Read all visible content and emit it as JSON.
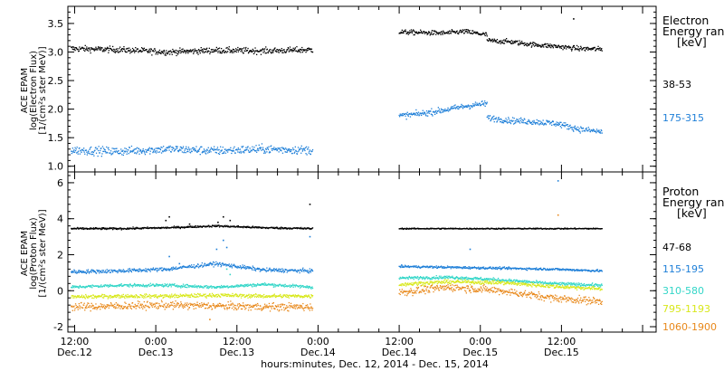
{
  "chart_data": [
    {
      "type": "scatter",
      "panel": "top",
      "ylabel_lines": [
        "ACE EPAM",
        "log(Electron Flux)",
        "[1/(cm²s ster MeV)]"
      ],
      "ylim": [
        0.9,
        3.8
      ],
      "yticks": [
        1.0,
        1.5,
        2.0,
        2.5,
        3.0,
        3.5
      ],
      "ytick_labels": [
        "1.0",
        "1.5",
        "2.0",
        "2.5",
        "3.0",
        "3.5"
      ],
      "legend_title_lines": [
        "Electron",
        "Energy ranges",
        "[keV]"
      ],
      "legend_placement": "right",
      "data_gap_hours": [
        35.2,
        48.0
      ],
      "series": [
        {
          "name": "38-53",
          "color": "#000000",
          "segments": [
            {
              "start": -0.5,
              "end": 35.2,
              "levels": [
                3.06,
                3.04,
                3.0,
                3.03,
                3.02,
                3.04
              ],
              "noise": 0.05
            },
            {
              "start": 48.0,
              "end": 61.0,
              "levels": [
                3.35,
                3.34,
                3.33,
                3.36,
                3.3
              ],
              "noise": 0.04
            },
            {
              "start": 61.0,
              "end": 78.0,
              "levels": [
                3.2,
                3.18,
                3.13,
                3.1,
                3.06,
                3.05
              ],
              "noise": 0.04
            }
          ],
          "outliers": [
            [
              73.8,
              3.58
            ]
          ]
        },
        {
          "name": "175-315",
          "color": "#1e7fd8",
          "segments": [
            {
              "start": -0.5,
              "end": 35.2,
              "levels": [
                1.28,
                1.26,
                1.3,
                1.27,
                1.3,
                1.28
              ],
              "noise": 0.07
            },
            {
              "start": 48.0,
              "end": 61.0,
              "levels": [
                1.88,
                1.92,
                1.98,
                2.05,
                2.1
              ],
              "noise": 0.05
            },
            {
              "start": 61.0,
              "end": 78.0,
              "levels": [
                1.85,
                1.8,
                1.78,
                1.75,
                1.65,
                1.6
              ],
              "noise": 0.05
            }
          ],
          "outliers": []
        }
      ]
    },
    {
      "type": "scatter",
      "panel": "bottom",
      "ylabel_lines": [
        "ACE EPAM",
        "log(Proton Flux)",
        "[1/(cm²s ster MeV)]"
      ],
      "ylim": [
        -2.3,
        6.6
      ],
      "yticks": [
        -2,
        0,
        2,
        4,
        6
      ],
      "ytick_labels": [
        "-2",
        "0",
        "2",
        "4",
        "6"
      ],
      "legend_title_lines": [
        "Proton",
        "Energy ranges",
        "[keV]"
      ],
      "legend_placement": "right",
      "series": [
        {
          "name": "47-68",
          "color": "#000000",
          "segments": [
            {
              "start": -0.5,
              "end": 35.2,
              "levels": [
                3.45,
                3.45,
                3.5,
                3.6,
                3.5,
                3.45
              ],
              "noise": 0.05
            },
            {
              "start": 48.0,
              "end": 78.0,
              "levels": [
                3.45,
                3.45,
                3.45,
                3.45,
                3.45
              ],
              "noise": 0.03
            }
          ],
          "outliers": [
            [
              13.5,
              3.9
            ],
            [
              14.0,
              4.1
            ],
            [
              17.0,
              3.7
            ],
            [
              21.2,
              3.8
            ],
            [
              22.0,
              4.1
            ],
            [
              23.0,
              3.9
            ],
            [
              34.8,
              4.8
            ]
          ]
        },
        {
          "name": "115-195",
          "color": "#1e7fd8",
          "segments": [
            {
              "start": -0.5,
              "end": 35.2,
              "levels": [
                1.05,
                1.1,
                1.2,
                1.5,
                1.15,
                1.1
              ],
              "noise": 0.1
            },
            {
              "start": 48.0,
              "end": 78.0,
              "levels": [
                1.35,
                1.3,
                1.25,
                1.2,
                1.1
              ],
              "noise": 0.06
            }
          ],
          "outliers": [
            [
              14.0,
              1.9
            ],
            [
              15.5,
              1.5
            ],
            [
              21.0,
              2.3
            ],
            [
              22.0,
              2.8
            ],
            [
              22.5,
              2.4
            ],
            [
              34.8,
              3.0
            ],
            [
              58.5,
              2.3
            ],
            [
              71.5,
              6.1
            ]
          ]
        },
        {
          "name": "310-580",
          "color": "#33d6c8",
          "segments": [
            {
              "start": -0.5,
              "end": 35.2,
              "levels": [
                0.2,
                0.3,
                0.3,
                0.2,
                0.35,
                0.2
              ],
              "noise": 0.08
            },
            {
              "start": 48.0,
              "end": 78.0,
              "levels": [
                0.7,
                0.75,
                0.6,
                0.4,
                0.3
              ],
              "noise": 0.08
            }
          ],
          "outliers": [
            [
              22.5,
              1.2
            ],
            [
              23.0,
              0.9
            ]
          ]
        },
        {
          "name": "795-1193",
          "color": "#d8e81a",
          "segments": [
            {
              "start": -0.5,
              "end": 35.2,
              "levels": [
                -0.35,
                -0.3,
                -0.3,
                -0.25,
                -0.3,
                -0.3
              ],
              "noise": 0.1
            },
            {
              "start": 48.0,
              "end": 78.0,
              "levels": [
                0.35,
                0.5,
                0.45,
                0.25,
                0.1
              ],
              "noise": 0.1
            }
          ],
          "outliers": []
        },
        {
          "name": "1060-1900",
          "color": "#e8881a",
          "segments": [
            {
              "start": -0.5,
              "end": 35.2,
              "levels": [
                -0.9,
                -0.85,
                -0.8,
                -0.85,
                -0.9,
                -0.9
              ],
              "noise": 0.2
            },
            {
              "start": 48.0,
              "end": 78.0,
              "levels": [
                -0.1,
                0.2,
                0.0,
                -0.4,
                -0.6
              ],
              "noise": 0.2
            }
          ],
          "outliers": [
            [
              71.5,
              4.2
            ],
            [
              20.0,
              -1.6
            ]
          ]
        }
      ]
    }
  ],
  "x_axis": {
    "range_hours": [
      -1.0,
      86.0
    ],
    "xlabel": "hours:minutes, Dec. 12, 2014 - Dec. 15, 2014",
    "major_ticks": [
      {
        "hour": 0,
        "time": "12:00",
        "date": "Dec.12"
      },
      {
        "hour": 12,
        "time": "0:00",
        "date": "Dec.13"
      },
      {
        "hour": 24,
        "time": "12:00",
        "date": "Dec.13"
      },
      {
        "hour": 36,
        "time": "0:00",
        "date": "Dec.14"
      },
      {
        "hour": 48,
        "time": "12:00",
        "date": "Dec.14"
      },
      {
        "hour": 60,
        "time": "0:00",
        "date": "Dec.15"
      },
      {
        "hour": 72,
        "time": "12:00",
        "date": "Dec.15"
      }
    ]
  }
}
